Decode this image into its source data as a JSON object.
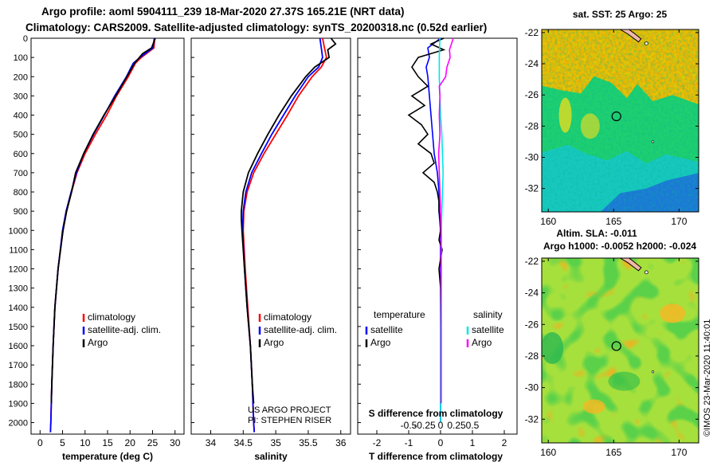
{
  "title_line1": "Argo profile: aoml 5904111_239 18-Mar-2020 27.37S 165.21E (NRT data)",
  "title_line2": "Climatology: CARS2009. Satellite-adjusted climatology: synTS_20200318.nc (0.52d earlier)",
  "colors": {
    "climatology": "#ff0000",
    "satellite": "#0000ff",
    "argo": "#000000",
    "sat_salinity": "#00e6e6",
    "argo_salinity": "#ff00ff"
  },
  "depth_ticks": [
    "0",
    "100",
    "200",
    "300",
    "400",
    "500",
    "600",
    "700",
    "800",
    "900",
    "1000",
    "1100",
    "1200",
    "1300",
    "1400",
    "1500",
    "1600",
    "1700",
    "1800",
    "1900",
    "2000"
  ],
  "chart_data": [
    {
      "type": "line",
      "panel": "temperature",
      "xlabel": "temperature (deg C)",
      "xlim": [
        -2,
        32
      ],
      "ylim": [
        2060,
        0
      ],
      "x_ticks": [
        0,
        5,
        10,
        15,
        20,
        25,
        30
      ],
      "x_tick_labels": [
        "0",
        "5",
        "10",
        "15",
        "20",
        "25",
        "30"
      ],
      "legend": [
        "climatology",
        "satellite-adj. clim.",
        "Argo"
      ],
      "series": [
        {
          "name": "climatology",
          "color": "#ff0000",
          "depth": [
            0,
            50,
            100,
            130,
            200,
            300,
            400,
            500,
            600,
            700,
            800,
            900,
            1000,
            1200,
            1400,
            1600,
            1800,
            2000,
            2050
          ],
          "values": [
            25.5,
            25.3,
            22.5,
            21.2,
            19.6,
            17.0,
            14.8,
            12.3,
            10.0,
            8.2,
            7.0,
            5.9,
            5.1,
            4.0,
            3.3,
            2.9,
            2.6,
            2.4,
            2.3
          ]
        },
        {
          "name": "satellite-adj. clim.",
          "color": "#0000ff",
          "depth": [
            0,
            50,
            100,
            130,
            200,
            300,
            400,
            500,
            600,
            700,
            800,
            900,
            1000,
            1200,
            1400,
            1600,
            1800,
            2000,
            2050
          ],
          "values": [
            25.4,
            25.1,
            22.2,
            20.7,
            19.2,
            16.6,
            14.3,
            11.9,
            9.7,
            8.1,
            6.9,
            5.8,
            5.0,
            4.0,
            3.3,
            2.9,
            2.6,
            2.4,
            2.3
          ]
        },
        {
          "name": "Argo",
          "color": "#000000",
          "depth": [
            0,
            50,
            80,
            130,
            200,
            300,
            400,
            500,
            600,
            700,
            800,
            900,
            1000,
            1200,
            1400,
            1600,
            1800,
            1900
          ],
          "values": [
            25.6,
            24.8,
            22.8,
            21.0,
            19.3,
            16.8,
            14.2,
            11.8,
            9.7,
            7.9,
            7.0,
            5.9,
            5.1,
            4.0,
            3.3,
            2.9,
            2.6,
            2.5
          ]
        }
      ]
    },
    {
      "type": "line",
      "panel": "salinity",
      "xlabel": "salinity",
      "xlim": [
        33.7,
        36.15
      ],
      "ylim": [
        2060,
        0
      ],
      "x_ticks": [
        34,
        34.5,
        35,
        35.5,
        36
      ],
      "x_tick_labels": [
        "34",
        "34.5",
        "35",
        "35.5",
        "36"
      ],
      "legend": [
        "climatology",
        "satellite-adj. clim.",
        "Argo"
      ],
      "annotations": [
        "US ARGO PROJECT",
        "PI: STEPHEN RISER"
      ],
      "series": [
        {
          "name": "climatology",
          "color": "#ff0000",
          "depth": [
            0,
            50,
            100,
            150,
            200,
            300,
            400,
            500,
            600,
            700,
            800,
            900,
            1000,
            1200,
            1400,
            1600,
            1800,
            2000,
            2050
          ],
          "values": [
            35.72,
            35.75,
            35.78,
            35.7,
            35.56,
            35.35,
            35.18,
            35.0,
            34.82,
            34.66,
            34.56,
            34.51,
            34.5,
            34.53,
            34.57,
            34.61,
            34.64,
            34.66,
            34.67
          ]
        },
        {
          "name": "satellite-adj. clim.",
          "color": "#0000ff",
          "depth": [
            0,
            50,
            100,
            150,
            200,
            300,
            400,
            500,
            600,
            700,
            800,
            900,
            1000,
            1200,
            1400,
            1600,
            1800,
            2000,
            2050
          ],
          "values": [
            35.68,
            35.7,
            35.72,
            35.66,
            35.5,
            35.3,
            35.12,
            34.94,
            34.78,
            34.63,
            34.54,
            34.5,
            34.49,
            34.52,
            34.56,
            34.61,
            34.64,
            34.66,
            34.67
          ]
        },
        {
          "name": "Argo",
          "color": "#000000",
          "depth": [
            0,
            30,
            60,
            100,
            150,
            200,
            300,
            400,
            500,
            600,
            700,
            800,
            900,
            940,
            1000,
            1200,
            1400,
            1600,
            1800,
            1900
          ],
          "values": [
            35.85,
            35.92,
            35.8,
            35.82,
            35.6,
            35.46,
            35.24,
            35.05,
            34.88,
            34.72,
            34.58,
            34.5,
            34.47,
            34.47,
            34.48,
            34.52,
            34.56,
            34.61,
            34.64,
            34.66
          ]
        }
      ]
    },
    {
      "type": "line",
      "panel": "difference",
      "xlabel": "T difference from climatology",
      "xlabel_top": "S difference from climatology",
      "xlim": [
        -2.6,
        2.4
      ],
      "ylim": [
        2060,
        0
      ],
      "x_ticks": [
        -2,
        -1,
        0,
        1,
        2
      ],
      "x_tick_labels": [
        "-2",
        "-1",
        "0",
        "1",
        "2"
      ],
      "s_ticks": [
        -0.5,
        -0.25,
        0,
        0.25,
        0.5
      ],
      "s_tick_labels": [
        "-0.5",
        "-0.25",
        "0",
        "0.25",
        "0.5"
      ],
      "legend_left_title": "temperature",
      "legend_right_title": "salinity",
      "legend_left": [
        "satellite",
        "Argo"
      ],
      "legend_right": [
        "satellite",
        "Argo"
      ],
      "series": [
        {
          "name": "T satellite",
          "color": "#0000ff",
          "depth": [
            0,
            50,
            100,
            150,
            200,
            300,
            400,
            500,
            600,
            700,
            800,
            900,
            1000,
            1200,
            1500,
            1800,
            2000
          ],
          "values": [
            0,
            -0.4,
            -0.35,
            -0.45,
            -0.4,
            -0.35,
            -0.3,
            -0.25,
            -0.2,
            -0.1,
            -0.05,
            -0.05,
            0,
            0,
            0,
            0,
            0
          ]
        },
        {
          "name": "T Argo",
          "color": "#000000",
          "depth": [
            0,
            30,
            60,
            100,
            150,
            200,
            250,
            300,
            350,
            400,
            450,
            500,
            550,
            600,
            650,
            700,
            750,
            800,
            850,
            900,
            950,
            1000,
            1050,
            1100,
            1150,
            1200,
            1300,
            1400,
            1500,
            1600,
            1700,
            1800,
            1900
          ],
          "values": [
            0.1,
            -0.3,
            0.1,
            -0.7,
            -0.9,
            -0.7,
            -0.4,
            -0.9,
            -0.5,
            -1.0,
            -0.6,
            -0.4,
            -0.7,
            -0.3,
            -0.2,
            -0.55,
            -0.2,
            -0.1,
            -0.05,
            -0.05,
            0,
            0,
            -0.05,
            0.05,
            0,
            -0.05,
            0,
            0,
            0,
            0,
            0,
            0,
            0
          ]
        },
        {
          "name": "S satellite",
          "color": "#00e6e6",
          "depth": [
            0,
            100,
            200,
            300,
            400,
            500,
            600,
            700,
            800,
            900,
            1000,
            1200,
            1500,
            1800,
            2000
          ],
          "values": [
            -0.01,
            -0.02,
            -0.02,
            -0.01,
            0,
            0.02,
            0.03,
            0.04,
            0.03,
            0.02,
            0.01,
            0.01,
            0,
            0,
            0
          ]
        },
        {
          "name": "S Argo",
          "color": "#ff00ff",
          "depth": [
            0,
            30,
            60,
            100,
            150,
            200,
            250,
            300,
            400,
            500,
            600,
            700,
            800,
            900,
            1000,
            1200,
            1400,
            1600,
            1800,
            1900
          ],
          "values": [
            0.2,
            0.17,
            0.14,
            0.15,
            0.1,
            0.08,
            -0.02,
            -0.01,
            -0.02,
            -0.01,
            -0.03,
            -0.02,
            -0.01,
            0,
            0.01,
            0.01,
            0.01,
            0.01,
            0.01,
            0.01
          ]
        }
      ]
    },
    {
      "type": "heatmap",
      "panel": "sst_map",
      "title": "sat. SST: 25 Argo: 25",
      "xlim": [
        159.5,
        171.5
      ],
      "ylim": [
        -33.5,
        -21.8
      ],
      "x_ticks": [
        160,
        165,
        170
      ],
      "x_tick_labels": [
        "160",
        "165",
        "170"
      ],
      "y_ticks": [
        -22,
        -24,
        -26,
        -28,
        -30,
        -32
      ],
      "y_tick_labels": [
        "-22",
        "-24",
        "-26",
        "-28",
        "-30",
        "-32"
      ],
      "profile_location": {
        "lon": 165.21,
        "lat": -27.37
      },
      "xlabel_below": "Altim. SLA: -0.011"
    },
    {
      "type": "heatmap",
      "panel": "sla_map",
      "title": "Argo h1000: -0.0052 h2000: -0.024",
      "xlim": [
        159.5,
        171.5
      ],
      "ylim": [
        -33.5,
        -21.8
      ],
      "x_ticks": [
        160,
        165,
        170
      ],
      "x_tick_labels": [
        "160",
        "165",
        "170"
      ],
      "y_ticks": [
        -22,
        -24,
        -26,
        -28,
        -30,
        -32
      ],
      "y_tick_labels": [
        "-22",
        "-24",
        "-26",
        "-28",
        "-30",
        "-32"
      ],
      "profile_location": {
        "lon": 165.21,
        "lat": -27.37
      }
    }
  ],
  "credit": "©IMOS 23-Mar-2020 11:40:01"
}
